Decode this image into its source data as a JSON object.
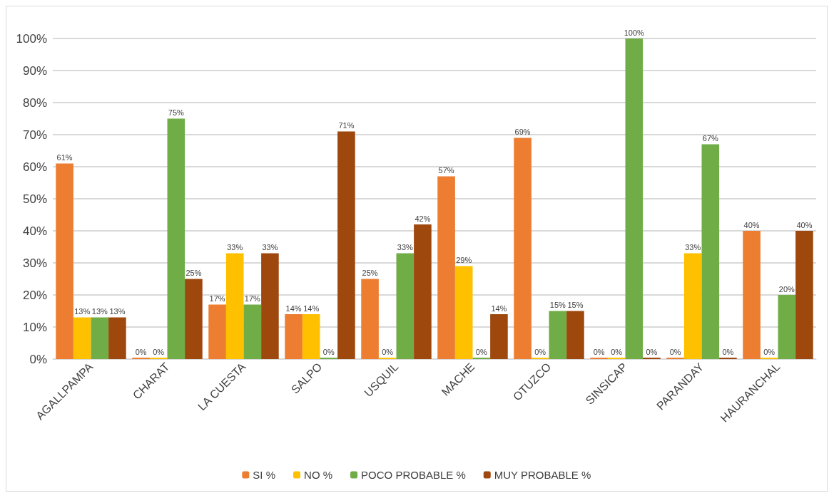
{
  "chart_data": {
    "type": "bar",
    "categories": [
      "AGALLPAMPA",
      "CHARAT",
      "LA CUESTA",
      "SALPO",
      "USQUIL",
      "MACHE",
      "OTUZCO",
      "SINSICAP",
      "PARANDAY",
      "HAURANCHAL"
    ],
    "series": [
      {
        "name": "SI %",
        "color": "#ed7d31",
        "values": [
          61,
          0,
          17,
          14,
          25,
          57,
          69,
          0,
          0,
          40
        ],
        "value_labels": [
          "61%",
          "0%",
          "17%",
          "14%",
          "25%",
          "57%",
          "69%",
          "0%",
          "0%",
          "40%"
        ]
      },
      {
        "name": "NO %",
        "color": "#ffc000",
        "values": [
          13,
          0,
          33,
          14,
          0,
          29,
          0,
          0,
          33,
          0
        ],
        "value_labels": [
          "13%",
          "0%",
          "33%",
          "14%",
          "0%",
          "29%",
          "0%",
          "0%",
          "33%",
          "0%"
        ]
      },
      {
        "name": "POCO PROBABLE %",
        "color": "#70ad47",
        "values": [
          13,
          75,
          17,
          0,
          33,
          0,
          15,
          100,
          67,
          20
        ],
        "value_labels": [
          "13%",
          "75%",
          "17%",
          "0%",
          "33%",
          "0%",
          "15%",
          "100%",
          "67%",
          "20%"
        ]
      },
      {
        "name": "MUY PROBABLE %",
        "color": "#9e480e",
        "values": [
          13,
          25,
          33,
          71,
          42,
          14,
          15,
          0,
          0,
          40
        ],
        "value_labels": [
          "13%",
          "25%",
          "33%",
          "71%",
          "42%",
          "14%",
          "15%",
          "0%",
          "0%",
          "40%"
        ]
      }
    ],
    "ylim": [
      0,
      100
    ],
    "yticks": [
      {
        "value": 0,
        "label": "0%"
      },
      {
        "value": 10,
        "label": "10%"
      },
      {
        "value": 20,
        "label": "20%"
      },
      {
        "value": 30,
        "label": "30%"
      },
      {
        "value": 40,
        "label": "40%"
      },
      {
        "value": 50,
        "label": "50%"
      },
      {
        "value": 60,
        "label": "60%"
      },
      {
        "value": 70,
        "label": "70%"
      },
      {
        "value": 80,
        "label": "80%"
      },
      {
        "value": 90,
        "label": "90%"
      },
      {
        "value": 100,
        "label": "100%"
      }
    ],
    "grid": "y",
    "legend": "bottom"
  }
}
